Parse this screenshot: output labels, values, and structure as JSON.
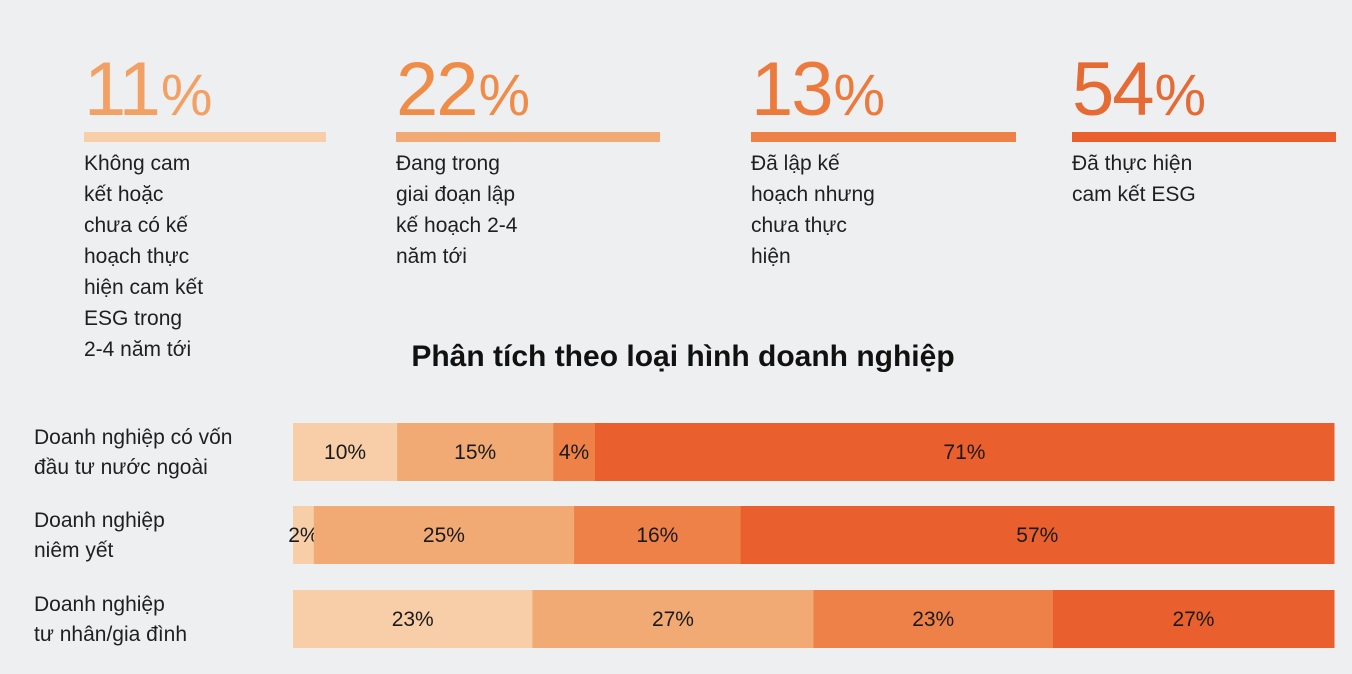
{
  "colors": {
    "c1": "#f7cea8",
    "c2": "#f2aa75",
    "c3": "#ee8148",
    "c4": "#e95f2d",
    "num1": "#ee8a45",
    "num4": "#e56a33"
  },
  "stats": [
    {
      "value": "11",
      "unit": "%",
      "desc_lines": [
        "Không cam kết hoặc",
        "chưa có kế hoạch thực",
        "hiện cam kết ESG trong",
        "2-4 năm tới"
      ]
    },
    {
      "value": "22",
      "unit": "%",
      "desc_lines": [
        "Đang trong giai đoạn lập",
        "kế hoạch 2-4 năm tới"
      ]
    },
    {
      "value": "13",
      "unit": "%",
      "desc_lines": [
        "Đã lập kế hoạch nhưng",
        "chưa thực hiện"
      ]
    },
    {
      "value": "54",
      "unit": "%",
      "desc_lines": [
        "Đã thực hiện",
        "cam kết ESG"
      ]
    }
  ],
  "chart_data": {
    "type": "bar",
    "stacked": true,
    "orientation": "horizontal",
    "title": "Phân tích theo loại hình doanh nghiệp",
    "categories": [
      [
        "Doanh nghiệp có vốn",
        "đầu tư nước ngoài"
      ],
      [
        "Doanh nghiệp",
        "niêm yết"
      ],
      [
        "Doanh nghiệp",
        "tư nhân/gia đình"
      ]
    ],
    "series": [
      {
        "values": [
          10,
          2,
          23
        ],
        "labels": [
          "10%",
          "2%",
          "23%"
        ]
      },
      {
        "values": [
          15,
          25,
          27
        ],
        "labels": [
          "15%",
          "25%",
          "27%"
        ]
      },
      {
        "values": [
          4,
          16,
          23
        ],
        "labels": [
          "4%",
          "16%",
          "23%"
        ]
      },
      {
        "values": [
          71,
          57,
          27
        ],
        "labels": [
          "71%",
          "57%",
          "27%"
        ]
      }
    ],
    "xlim": [
      0,
      100
    ]
  }
}
